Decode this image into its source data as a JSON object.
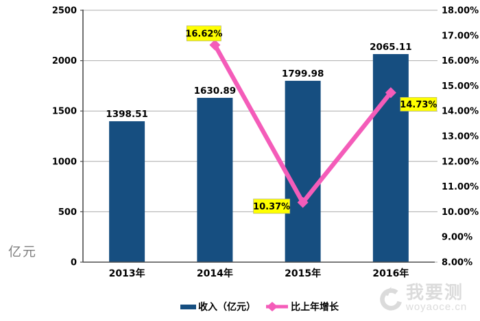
{
  "watermark": {
    "brand": "我要测",
    "domain": "woyaoce.cn"
  },
  "chart_data": {
    "type": "bar",
    "subtype": "combo bar + line, dual y-axis",
    "categories": [
      "2013年",
      "2014年",
      "2015年",
      "2016年"
    ],
    "series": [
      {
        "name": "收入（亿元）",
        "chart": "bar",
        "axis": "left",
        "values": [
          1398.51,
          1630.89,
          1799.98,
          2065.11
        ]
      },
      {
        "name": "比上年增长",
        "chart": "line",
        "axis": "right",
        "values": [
          null,
          16.62,
          10.37,
          14.73
        ]
      }
    ],
    "data_labels": {
      "bar": [
        "1398.51",
        "1630.89",
        "1799.98",
        "2065.11"
      ],
      "line": [
        {
          "text": "16.62%",
          "placement": "above"
        },
        {
          "text": "10.37%",
          "placement": "left"
        },
        {
          "text": "14.73%",
          "placement": "right"
        }
      ]
    },
    "left_axis": {
      "title": "亿元",
      "min": 0,
      "max": 2500,
      "step": 500,
      "ticks": [
        "2500",
        "2000",
        "1500",
        "1000",
        "500",
        "0"
      ]
    },
    "right_axis": {
      "min": 8,
      "max": 18,
      "step": 1,
      "ticks": [
        "18.00%",
        "17.00%",
        "16.00%",
        "15.00%",
        "14.00%",
        "13.00%",
        "12.00%",
        "11.00%",
        "10.00%",
        "9.00%",
        "8.00%"
      ]
    },
    "grid": true,
    "legend_position": "bottom",
    "colors": {
      "bar": "#164E80",
      "line": "#F45CB9",
      "label_bg": "#FFFF00",
      "label_border": "#B9B96A",
      "grid": "#ABABAB",
      "axis": "#4D4D4D",
      "text": "#000000",
      "axis_title": "#7F7F7F",
      "watermark": "#DBDBDB"
    }
  }
}
